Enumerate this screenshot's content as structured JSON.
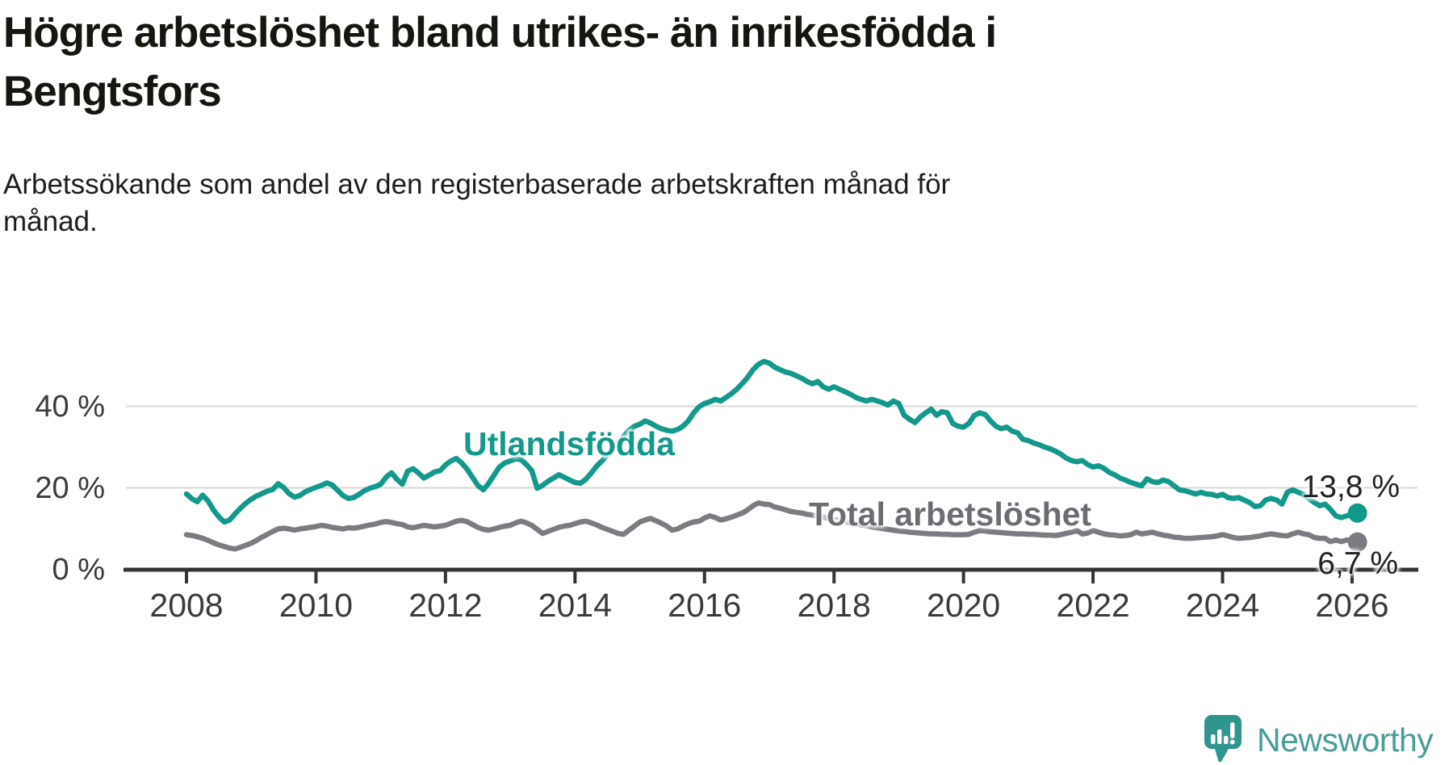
{
  "title": {
    "line1": "Högre arbetslöshet bland utrikes- än inrikesfödda i",
    "line2": "Bengtsfors"
  },
  "subtitle": {
    "line1": "Arbetssökande som andel av den registerbaserade arbetskraften månad för",
    "line2": "månad."
  },
  "annotations": {
    "series1_label": "Utlandsfödda",
    "series2_label": "Total arbetslöshet",
    "series1_end_label": "13,8 %",
    "series2_end_label": "6,7 %"
  },
  "logo": {
    "text": "Newsworthy"
  },
  "colors": {
    "teal": "#12998B",
    "gray_line": "#7D7B81",
    "gray_label": "#6E6C73",
    "axis": "#333333",
    "grid": "#D8D8D8",
    "tick_text": "#3B3B3B",
    "logo_teal": "#4A9C96",
    "logo_icon": "#2E968E"
  },
  "chart_data": {
    "type": "line",
    "title": "Högre arbetslöshet bland utrikes- än inrikesfödda i Bengtsfors",
    "subtitle": "Arbetssökande som andel av den registerbaserade arbetskraften månad för månad.",
    "unit": "%",
    "x_start_year": 2008,
    "x_step": "monthly",
    "x_end": "2026-02",
    "xlim": [
      2007.05,
      2027.05
    ],
    "ylim": [
      0,
      52
    ],
    "grid": "horizontal",
    "y_ticks": [
      {
        "value": 0,
        "label": "0 %"
      },
      {
        "value": 20,
        "label": "20 %"
      },
      {
        "value": 40,
        "label": "40 %"
      }
    ],
    "x_ticks": [
      {
        "value": 2008,
        "label": "2008"
      },
      {
        "value": 2010,
        "label": "2010"
      },
      {
        "value": 2012,
        "label": "2012"
      },
      {
        "value": 2014,
        "label": "2014"
      },
      {
        "value": 2016,
        "label": "2016"
      },
      {
        "value": 2018,
        "label": "2018"
      },
      {
        "value": 2020,
        "label": "2020"
      },
      {
        "value": 2022,
        "label": "2022"
      },
      {
        "value": 2024,
        "label": "2024"
      },
      {
        "value": 2026,
        "label": "2026"
      }
    ],
    "series": [
      {
        "name": "Total arbetslöshet",
        "color": "#7D7B81",
        "end_value": 6.7,
        "end_label": "6,7 %",
        "values": [
          8.5,
          8.3,
          8.0,
          7.6,
          7.1,
          6.5,
          6.0,
          5.6,
          5.2,
          5.0,
          5.4,
          5.9,
          6.4,
          7.1,
          7.9,
          8.6,
          9.3,
          9.9,
          10.1,
          9.9,
          9.6,
          9.9,
          10.1,
          10.3,
          10.5,
          10.8,
          10.6,
          10.3,
          10.1,
          9.9,
          10.2,
          10.1,
          10.3,
          10.6,
          10.9,
          11.1,
          11.5,
          11.7,
          11.5,
          11.2,
          11.0,
          10.4,
          10.2,
          10.5,
          10.8,
          10.6,
          10.4,
          10.6,
          10.8,
          11.3,
          11.8,
          12.0,
          11.7,
          11.0,
          10.3,
          9.8,
          9.6,
          9.9,
          10.3,
          10.6,
          10.8,
          11.4,
          11.8,
          11.4,
          10.8,
          9.8,
          8.8,
          9.3,
          9.8,
          10.3,
          10.6,
          10.8,
          11.2,
          11.6,
          11.8,
          11.4,
          10.9,
          10.3,
          9.8,
          9.3,
          8.8,
          8.6,
          9.6,
          10.6,
          11.6,
          12.1,
          12.5,
          11.9,
          11.3,
          10.6,
          9.6,
          9.9,
          10.6,
          11.2,
          11.6,
          11.8,
          12.6,
          13.1,
          12.7,
          12.1,
          12.4,
          12.8,
          13.3,
          13.8,
          14.6,
          15.6,
          16.3,
          16.0,
          15.9,
          15.3,
          15.0,
          14.6,
          14.2,
          14.0,
          13.8,
          13.5,
          13.3,
          13.0,
          12.8,
          12.5,
          12.2,
          12.0,
          11.7,
          11.4,
          11.2,
          10.9,
          10.7,
          10.4,
          10.2,
          10.0,
          9.8,
          9.6,
          9.4,
          9.3,
          9.1,
          9.0,
          8.9,
          8.8,
          8.7,
          8.7,
          8.6,
          8.6,
          8.5,
          8.5,
          8.5,
          8.6,
          9.1,
          9.5,
          9.4,
          9.2,
          9.1,
          9.0,
          8.9,
          8.8,
          8.7,
          8.7,
          8.6,
          8.6,
          8.5,
          8.4,
          8.4,
          8.3,
          8.5,
          8.8,
          9.1,
          9.5,
          8.7,
          8.9,
          9.5,
          9.1,
          8.7,
          8.5,
          8.4,
          8.2,
          8.3,
          8.5,
          9.1,
          8.7,
          8.9,
          9.1,
          8.7,
          8.4,
          8.2,
          7.9,
          7.8,
          7.6,
          7.6,
          7.7,
          7.8,
          7.9,
          8.0,
          8.2,
          8.5,
          8.2,
          7.8,
          7.6,
          7.7,
          7.8,
          8.0,
          8.2,
          8.5,
          8.7,
          8.5,
          8.3,
          8.2,
          8.7,
          9.1,
          8.7,
          8.5,
          7.8,
          7.6,
          7.6,
          6.8,
          7.2,
          6.8,
          7.2,
          7.0,
          6.7
        ]
      },
      {
        "name": "Utlandsfödda",
        "color": "#12998B",
        "end_value": 13.8,
        "end_label": "13,8 %",
        "values": [
          18.5,
          17.3,
          16.6,
          18.2,
          16.8,
          14.6,
          12.9,
          11.6,
          12.1,
          13.6,
          15.0,
          16.2,
          17.2,
          18.0,
          18.6,
          19.2,
          19.6,
          21.0,
          20.1,
          18.6,
          17.7,
          18.1,
          19.0,
          19.6,
          20.1,
          20.6,
          21.2,
          20.7,
          19.4,
          18.1,
          17.4,
          17.6,
          18.4,
          19.3,
          19.9,
          20.3,
          20.9,
          22.6,
          23.7,
          22.1,
          20.9,
          24.1,
          24.7,
          23.6,
          22.4,
          23.1,
          23.9,
          24.2,
          25.6,
          26.6,
          27.2,
          26.1,
          24.6,
          22.6,
          20.6,
          19.5,
          21.1,
          23.1,
          25.1,
          26.1,
          26.6,
          27.1,
          26.9,
          25.7,
          24.2,
          19.9,
          20.6,
          21.6,
          22.4,
          23.2,
          22.6,
          21.9,
          21.3,
          21.1,
          22.1,
          23.6,
          25.3,
          26.6,
          28.1,
          29.6,
          31.1,
          32.6,
          34.1,
          35.1,
          35.6,
          36.4,
          35.9,
          35.1,
          34.5,
          34.1,
          33.9,
          34.3,
          35.1,
          36.4,
          38.4,
          39.9,
          40.7,
          41.1,
          41.7,
          41.3,
          42.2,
          43.1,
          44.2,
          45.6,
          47.1,
          49.0,
          50.3,
          51.0,
          50.6,
          49.6,
          49.0,
          48.4,
          48.1,
          47.5,
          46.9,
          46.1,
          45.5,
          46.1,
          44.8,
          44.2,
          44.8,
          44.2,
          43.6,
          43.0,
          42.2,
          41.7,
          41.3,
          41.7,
          41.3,
          40.9,
          40.3,
          41.3,
          40.7,
          37.8,
          36.8,
          36.0,
          37.4,
          38.4,
          39.3,
          37.8,
          38.7,
          38.4,
          35.8,
          35.1,
          34.9,
          35.8,
          37.8,
          38.4,
          38.0,
          36.4,
          35.1,
          34.5,
          34.9,
          33.9,
          33.5,
          31.9,
          31.6,
          31.0,
          30.6,
          30.0,
          29.6,
          29.0,
          28.3,
          27.3,
          26.7,
          26.4,
          26.7,
          25.7,
          25.1,
          25.4,
          24.8,
          23.8,
          23.2,
          22.4,
          21.9,
          21.3,
          20.9,
          20.5,
          22.2,
          21.5,
          21.3,
          21.9,
          21.5,
          20.5,
          19.5,
          19.3,
          18.9,
          18.5,
          18.9,
          18.5,
          18.4,
          18.0,
          18.4,
          17.6,
          17.4,
          17.6,
          17.0,
          16.4,
          15.4,
          15.6,
          17.0,
          17.4,
          17.0,
          16.0,
          18.9,
          19.5,
          18.9,
          18.4,
          17.4,
          16.4,
          15.6,
          16.0,
          14.7,
          13.1,
          12.7,
          13.1,
          13.6,
          13.8
        ]
      }
    ]
  }
}
